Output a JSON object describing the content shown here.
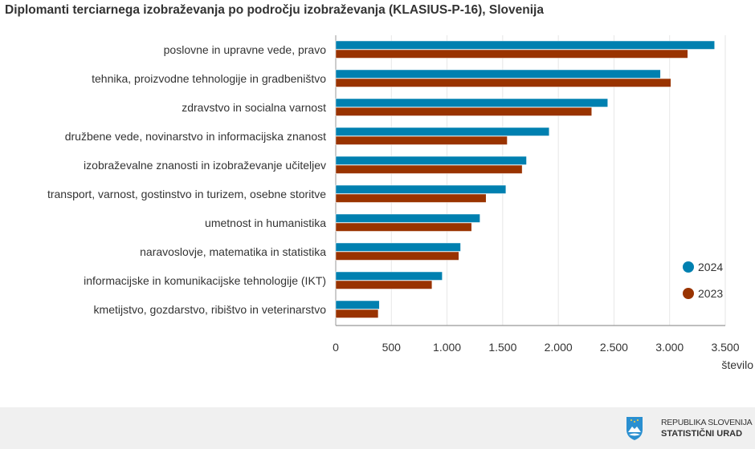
{
  "title": "Diplomanti terciarnega izobraževanja po področju izobraževanja (KLASIUS-P-16), Slovenija",
  "chart_data": {
    "type": "bar",
    "orientation": "horizontal",
    "title": "Diplomanti terciarnega izobraževanja po področju izobraževanja (KLASIUS-P-16), Slovenija",
    "xlabel": "število",
    "xlim": [
      0,
      3500
    ],
    "xticks": [
      0,
      500,
      1000,
      1500,
      2000,
      2500,
      3000,
      3500
    ],
    "xtick_labels": [
      "0",
      "500",
      "1.000",
      "1.500",
      "2.000",
      "2.500",
      "3.000",
      "3.500"
    ],
    "grid": true,
    "legend_position": "right",
    "categories": [
      "poslovne in upravne vede, pravo",
      "tehnika, proizvodne tehnologije in gradbeništvo",
      "zdravstvo in socialna varnost",
      "družbene vede, novinarstvo in informacijska znanost",
      "izobraževalne znanosti in izobraževanje učiteljev",
      "transport, varnost, gostinstvo in turizem, osebne storitve",
      "umetnost in humanistika",
      "naravoslovje, matematika in statistika",
      "informacijske in komunikacijske tehnologije (IKT)",
      "kmetijstvo, gozdarstvo, ribištvo in veterinarstvo"
    ],
    "series": [
      {
        "name": "2024",
        "color": "#0080b0",
        "values": [
          3404,
          2918,
          2444,
          1918,
          1714,
          1529,
          1296,
          1122,
          957,
          392
        ]
      },
      {
        "name": "2023",
        "color": "#993300",
        "values": [
          3163,
          3011,
          2300,
          1541,
          1675,
          1351,
          1221,
          1106,
          865,
          382
        ]
      }
    ]
  },
  "footer": {
    "logo_line1": "REPUBLIKA SLOVENIJA",
    "logo_line2": "STATISTIČNI URAD"
  }
}
